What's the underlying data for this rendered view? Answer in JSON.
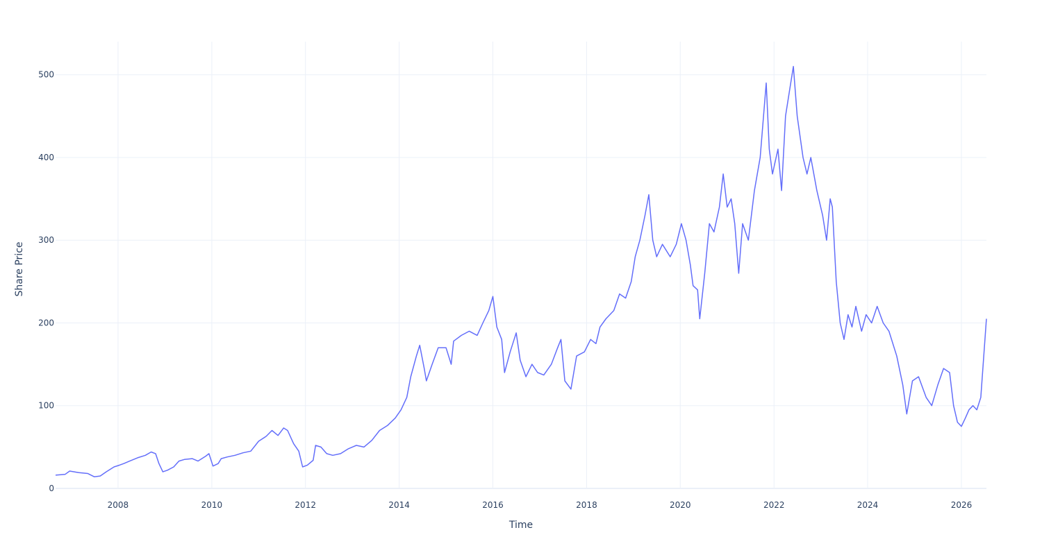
{
  "chart_data": {
    "type": "line",
    "title": "",
    "xlabel": "Time",
    "ylabel": "Share Price",
    "x_range": [
      "2006-09-01",
      "2026-07-15"
    ],
    "ylim": [
      0,
      540
    ],
    "x_ticks": [
      {
        "date": "2008-01-01",
        "label": "2008"
      },
      {
        "date": "2010-01-01",
        "label": "2010"
      },
      {
        "date": "2012-01-01",
        "label": "2012"
      },
      {
        "date": "2014-01-01",
        "label": "2014"
      },
      {
        "date": "2016-01-01",
        "label": "2016"
      },
      {
        "date": "2018-01-01",
        "label": "2018"
      },
      {
        "date": "2020-01-01",
        "label": "2020"
      },
      {
        "date": "2022-01-01",
        "label": "2022"
      },
      {
        "date": "2024-01-01",
        "label": "2024"
      },
      {
        "date": "2026-01-01",
        "label": "2026"
      }
    ],
    "y_ticks": [
      {
        "value": 0,
        "label": "0"
      },
      {
        "value": 100,
        "label": "100"
      },
      {
        "value": 200,
        "label": "200"
      },
      {
        "value": 300,
        "label": "300"
      },
      {
        "value": 400,
        "label": "400"
      },
      {
        "value": 500,
        "label": "500"
      }
    ],
    "grid": true,
    "legend": "none",
    "colors": {
      "line": "#636efa",
      "grid": "#ebf0f8",
      "text": "#2a3f5f"
    },
    "series": [
      {
        "points": [
          [
            "2006-09-01",
            16
          ],
          [
            "2006-11-15",
            17
          ],
          [
            "2006-12-20",
            21
          ],
          [
            "2007-03-01",
            19
          ],
          [
            "2007-05-10",
            18
          ],
          [
            "2007-07-01",
            14
          ],
          [
            "2007-08-15",
            15
          ],
          [
            "2007-10-01",
            20
          ],
          [
            "2007-12-01",
            26
          ],
          [
            "2008-01-10",
            28
          ],
          [
            "2008-02-15",
            30
          ],
          [
            "2008-04-01",
            33
          ],
          [
            "2008-06-01",
            37
          ],
          [
            "2008-08-01",
            40
          ],
          [
            "2008-09-15",
            44
          ],
          [
            "2008-10-20",
            42
          ],
          [
            "2008-11-15",
            30
          ],
          [
            "2008-12-15",
            20
          ],
          [
            "2009-01-20",
            22
          ],
          [
            "2009-03-10",
            26
          ],
          [
            "2009-04-20",
            33
          ],
          [
            "2009-06-01",
            35
          ],
          [
            "2009-08-01",
            36
          ],
          [
            "2009-09-15",
            33
          ],
          [
            "2009-11-15",
            39
          ],
          [
            "2009-12-10",
            42
          ],
          [
            "2010-01-10",
            27
          ],
          [
            "2010-02-20",
            30
          ],
          [
            "2010-03-15",
            36
          ],
          [
            "2010-05-01",
            38
          ],
          [
            "2010-07-01",
            40
          ],
          [
            "2010-09-01",
            43
          ],
          [
            "2010-11-01",
            45
          ],
          [
            "2011-01-01",
            57
          ],
          [
            "2011-03-01",
            63
          ],
          [
            "2011-04-15",
            70
          ],
          [
            "2011-06-01",
            64
          ],
          [
            "2011-07-15",
            73
          ],
          [
            "2011-08-15",
            70
          ],
          [
            "2011-10-01",
            54
          ],
          [
            "2011-11-10",
            45
          ],
          [
            "2011-12-10",
            26
          ],
          [
            "2012-01-15",
            28
          ],
          [
            "2012-03-01",
            34
          ],
          [
            "2012-03-20",
            52
          ],
          [
            "2012-05-01",
            50
          ],
          [
            "2012-06-15",
            42
          ],
          [
            "2012-08-01",
            40
          ],
          [
            "2012-10-01",
            42
          ],
          [
            "2012-12-01",
            48
          ],
          [
            "2013-02-01",
            52
          ],
          [
            "2013-04-01",
            50
          ],
          [
            "2013-06-01",
            58
          ],
          [
            "2013-08-01",
            70
          ],
          [
            "2013-10-01",
            76
          ],
          [
            "2013-12-01",
            85
          ],
          [
            "2014-01-15",
            95
          ],
          [
            "2014-03-01",
            110
          ],
          [
            "2014-04-01",
            135
          ],
          [
            "2014-05-15",
            160
          ],
          [
            "2014-06-10",
            173
          ],
          [
            "2014-07-15",
            145
          ],
          [
            "2014-08-01",
            130
          ],
          [
            "2014-09-15",
            150
          ],
          [
            "2014-11-01",
            170
          ],
          [
            "2015-01-01",
            170
          ],
          [
            "2015-02-10",
            150
          ],
          [
            "2015-03-01",
            178
          ],
          [
            "2015-05-01",
            185
          ],
          [
            "2015-07-01",
            190
          ],
          [
            "2015-09-01",
            185
          ],
          [
            "2015-10-15",
            200
          ],
          [
            "2015-12-01",
            215
          ],
          [
            "2016-01-01",
            232
          ],
          [
            "2016-02-01",
            195
          ],
          [
            "2016-03-10",
            180
          ],
          [
            "2016-04-01",
            140
          ],
          [
            "2016-05-15",
            165
          ],
          [
            "2016-07-01",
            188
          ],
          [
            "2016-08-01",
            155
          ],
          [
            "2016-09-15",
            135
          ],
          [
            "2016-11-01",
            150
          ],
          [
            "2016-12-15",
            140
          ],
          [
            "2017-02-01",
            137
          ],
          [
            "2017-04-01",
            150
          ],
          [
            "2017-05-20",
            170
          ],
          [
            "2017-06-15",
            180
          ],
          [
            "2017-07-15",
            130
          ],
          [
            "2017-09-01",
            120
          ],
          [
            "2017-10-15",
            160
          ],
          [
            "2017-12-15",
            165
          ],
          [
            "2018-02-01",
            180
          ],
          [
            "2018-03-15",
            175
          ],
          [
            "2018-04-15",
            195
          ],
          [
            "2018-06-01",
            205
          ],
          [
            "2018-08-01",
            215
          ],
          [
            "2018-09-15",
            235
          ],
          [
            "2018-11-01",
            230
          ],
          [
            "2018-12-15",
            250
          ],
          [
            "2019-01-15",
            280
          ],
          [
            "2019-02-20",
            300
          ],
          [
            "2019-04-01",
            330
          ],
          [
            "2019-05-01",
            355
          ],
          [
            "2019-06-01",
            300
          ],
          [
            "2019-07-01",
            280
          ],
          [
            "2019-08-15",
            295
          ],
          [
            "2019-10-15",
            280
          ],
          [
            "2019-12-01",
            295
          ],
          [
            "2020-01-10",
            320
          ],
          [
            "2020-02-15",
            300
          ],
          [
            "2020-03-20",
            270
          ],
          [
            "2020-04-10",
            245
          ],
          [
            "2020-05-15",
            240
          ],
          [
            "2020-06-01",
            205
          ],
          [
            "2020-07-10",
            260
          ],
          [
            "2020-08-15",
            320
          ],
          [
            "2020-09-20",
            310
          ],
          [
            "2020-11-01",
            340
          ],
          [
            "2020-12-01",
            380
          ],
          [
            "2021-01-01",
            340
          ],
          [
            "2021-02-01",
            350
          ],
          [
            "2021-03-01",
            320
          ],
          [
            "2021-04-01",
            260
          ],
          [
            "2021-05-01",
            320
          ],
          [
            "2021-06-15",
            300
          ],
          [
            "2021-08-01",
            360
          ],
          [
            "2021-09-15",
            400
          ],
          [
            "2021-11-01",
            490
          ],
          [
            "2021-11-25",
            410
          ],
          [
            "2021-12-20",
            380
          ],
          [
            "2022-02-01",
            410
          ],
          [
            "2022-03-01",
            360
          ],
          [
            "2022-04-01",
            450
          ],
          [
            "2022-05-01",
            480
          ],
          [
            "2022-06-01",
            510
          ],
          [
            "2022-07-01",
            450
          ],
          [
            "2022-08-15",
            400
          ],
          [
            "2022-09-15",
            380
          ],
          [
            "2022-10-15",
            400
          ],
          [
            "2022-12-01",
            360
          ],
          [
            "2023-01-15",
            330
          ],
          [
            "2023-02-15",
            300
          ],
          [
            "2023-03-15",
            350
          ],
          [
            "2023-04-01",
            340
          ],
          [
            "2023-05-01",
            250
          ],
          [
            "2023-06-01",
            200
          ],
          [
            "2023-07-01",
            180
          ],
          [
            "2023-08-01",
            210
          ],
          [
            "2023-09-01",
            195
          ],
          [
            "2023-10-01",
            220
          ],
          [
            "2023-11-15",
            190
          ],
          [
            "2023-12-20",
            210
          ],
          [
            "2024-02-01",
            200
          ],
          [
            "2024-03-15",
            220
          ],
          [
            "2024-05-01",
            200
          ],
          [
            "2024-06-15",
            190
          ],
          [
            "2024-08-15",
            160
          ],
          [
            "2024-10-01",
            125
          ],
          [
            "2024-11-01",
            90
          ],
          [
            "2024-12-15",
            130
          ],
          [
            "2025-02-01",
            135
          ],
          [
            "2025-04-01",
            110
          ],
          [
            "2025-05-15",
            100
          ],
          [
            "2025-07-01",
            125
          ],
          [
            "2025-08-15",
            145
          ],
          [
            "2025-10-01",
            140
          ],
          [
            "2025-11-01",
            100
          ],
          [
            "2025-12-01",
            80
          ],
          [
            "2026-01-01",
            75
          ],
          [
            "2026-02-01",
            85
          ],
          [
            "2026-03-01",
            95
          ],
          [
            "2026-04-01",
            100
          ],
          [
            "2026-05-01",
            95
          ],
          [
            "2026-06-01",
            110
          ],
          [
            "2026-07-15",
            205
          ]
        ]
      }
    ]
  }
}
